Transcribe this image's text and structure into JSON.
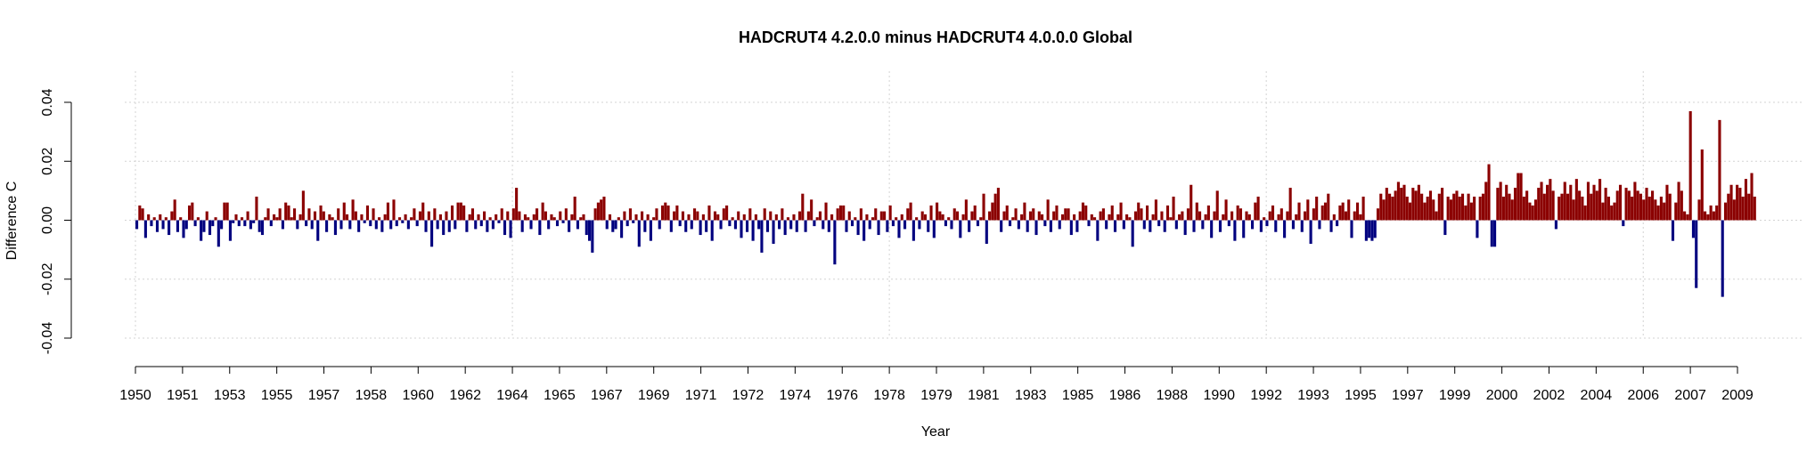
{
  "chart_data": {
    "type": "bar",
    "title": "HADCRUT4 4.2.0.0 minus HADCRUT4 4.0.0.0 Global",
    "xlabel": "Year",
    "ylabel": "Difference C",
    "ylim": [
      -0.04,
      0.04
    ],
    "yticks": [
      -0.04,
      -0.02,
      0.0,
      0.02,
      0.04
    ],
    "ytick_labels": [
      "-0.04",
      "-0.02",
      "0.00",
      "0.02",
      "0.04"
    ],
    "xtick_labels": [
      "1950",
      "1951",
      "1953",
      "1955",
      "1957",
      "1958",
      "1960",
      "1962",
      "1964",
      "1965",
      "1967",
      "1969",
      "1971",
      "1972",
      "1974",
      "1976",
      "1978",
      "1979",
      "1981",
      "1983",
      "1985",
      "1986",
      "1988",
      "1990",
      "1992",
      "1993",
      "1995",
      "1997",
      "1999",
      "2000",
      "2002",
      "2004",
      "2006",
      "2007",
      "2009"
    ],
    "grid": true,
    "x_start": "1950-01",
    "x_end": "2012-12",
    "frequency": "monthly",
    "positive_color": "#8B0000",
    "negative_color": "#00007F",
    "values": [
      -0.003,
      0.005,
      0.004,
      -0.006,
      0.002,
      -0.002,
      0.001,
      -0.004,
      0.002,
      -0.003,
      0.001,
      -0.005,
      0.003,
      0.007,
      -0.004,
      0.001,
      -0.006,
      -0.003,
      0.005,
      0.006,
      -0.002,
      0.001,
      -0.007,
      -0.004,
      0.003,
      -0.005,
      -0.002,
      0.001,
      -0.009,
      -0.003,
      0.006,
      0.006,
      -0.007,
      -0.001,
      0.002,
      -0.002,
      0.001,
      -0.002,
      0.003,
      -0.003,
      -0.001,
      0.008,
      -0.004,
      -0.005,
      0.001,
      0.004,
      -0.002,
      0.002,
      0.001,
      0.004,
      -0.003,
      0.006,
      0.005,
      0.001,
      0.004,
      -0.003,
      0.002,
      0.01,
      -0.002,
      0.004,
      -0.003,
      0.003,
      -0.007,
      0.005,
      0.003,
      -0.004,
      0.002,
      0.001,
      -0.005,
      0.004,
      -0.003,
      0.006,
      0.002,
      -0.003,
      0.007,
      0.003,
      -0.004,
      0.002,
      -0.001,
      0.005,
      -0.002,
      0.004,
      -0.003,
      0.001,
      -0.004,
      0.002,
      0.006,
      -0.003,
      0.007,
      -0.002,
      0.001,
      -0.001,
      0.002,
      -0.003,
      0.001,
      0.004,
      -0.002,
      0.003,
      0.006,
      -0.004,
      0.003,
      -0.009,
      0.004,
      -0.003,
      0.002,
      -0.005,
      0.003,
      -0.004,
      0.005,
      -0.003,
      0.006,
      0.006,
      0.005,
      -0.004,
      0.002,
      0.004,
      -0.003,
      0.002,
      -0.002,
      0.003,
      -0.004,
      0.001,
      -0.003,
      0.002,
      -0.001,
      0.004,
      -0.005,
      0.003,
      -0.006,
      0.004,
      0.011,
      0.003,
      -0.004,
      0.002,
      0.001,
      -0.003,
      0.002,
      0.004,
      -0.005,
      0.006,
      0.003,
      -0.003,
      0.002,
      0.001,
      -0.002,
      0.003,
      -0.001,
      0.004,
      -0.004,
      0.002,
      0.008,
      -0.003,
      0.001,
      0.002,
      -0.005,
      -0.007,
      -0.011,
      0.004,
      0.006,
      0.007,
      0.008,
      -0.003,
      0.002,
      -0.004,
      -0.003,
      0.001,
      -0.006,
      0.003,
      -0.002,
      0.004,
      -0.001,
      0.002,
      -0.009,
      0.003,
      -0.004,
      0.002,
      -0.007,
      0.001,
      0.004,
      -0.003,
      0.005,
      0.006,
      0.005,
      -0.004,
      0.003,
      0.005,
      -0.002,
      0.003,
      -0.004,
      0.002,
      -0.003,
      0.004,
      0.003,
      -0.005,
      0.002,
      -0.004,
      0.005,
      -0.007,
      0.003,
      0.002,
      -0.003,
      0.004,
      0.005,
      -0.002,
      0.001,
      -0.003,
      0.003,
      -0.006,
      0.002,
      -0.004,
      0.004,
      -0.007,
      0.002,
      -0.003,
      -0.011,
      0.004,
      -0.004,
      0.003,
      -0.008,
      0.002,
      -0.003,
      0.004,
      -0.005,
      0.001,
      -0.003,
      0.002,
      -0.004,
      0.003,
      0.009,
      -0.004,
      0.003,
      0.007,
      -0.002,
      0.001,
      0.003,
      -0.003,
      0.006,
      -0.004,
      0.002,
      -0.015,
      0.004,
      0.005,
      0.005,
      -0.004,
      0.003,
      -0.002,
      0.001,
      -0.005,
      0.004,
      -0.007,
      0.002,
      -0.003,
      0.001,
      0.004,
      -0.005,
      0.003,
      0.003,
      -0.004,
      0.005,
      -0.002,
      0.001,
      -0.006,
      0.002,
      -0.003,
      0.004,
      0.006,
      -0.007,
      0.001,
      -0.003,
      0.003,
      0.002,
      -0.004,
      0.005,
      -0.006,
      0.006,
      0.003,
      0.002,
      -0.002,
      0.001,
      -0.003,
      0.004,
      0.003,
      -0.006,
      0.002,
      0.007,
      -0.004,
      0.003,
      0.005,
      -0.002,
      0.001,
      0.009,
      -0.008,
      0.003,
      0.006,
      0.009,
      0.011,
      -0.004,
      0.003,
      0.005,
      -0.002,
      0.001,
      0.004,
      -0.003,
      0.002,
      0.006,
      -0.004,
      0.003,
      0.004,
      -0.005,
      0.003,
      0.002,
      -0.002,
      0.007,
      -0.004,
      0.003,
      0.005,
      -0.003,
      0.002,
      0.004,
      0.004,
      -0.005,
      0.002,
      -0.004,
      0.003,
      0.006,
      0.005,
      -0.002,
      0.002,
      0.001,
      -0.007,
      0.003,
      0.004,
      -0.003,
      0.002,
      0.005,
      -0.004,
      0.002,
      0.006,
      -0.003,
      0.002,
      0.001,
      -0.009,
      0.003,
      0.006,
      0.004,
      -0.003,
      0.005,
      -0.004,
      0.002,
      0.007,
      -0.002,
      0.003,
      -0.004,
      0.005,
      0.001,
      0.008,
      -0.003,
      0.002,
      0.003,
      -0.005,
      0.004,
      0.012,
      -0.004,
      0.006,
      0.003,
      -0.003,
      0.002,
      0.005,
      -0.006,
      0.003,
      0.01,
      -0.004,
      0.002,
      0.007,
      -0.002,
      0.003,
      -0.007,
      0.005,
      0.004,
      -0.006,
      0.003,
      0.002,
      -0.003,
      0.006,
      0.008,
      -0.004,
      0.001,
      -0.002,
      0.003,
      0.005,
      -0.004,
      0.002,
      0.004,
      -0.006,
      0.003,
      0.011,
      -0.003,
      0.002,
      0.006,
      -0.004,
      0.003,
      0.007,
      -0.008,
      0.004,
      0.008,
      -0.003,
      0.005,
      0.006,
      0.009,
      -0.004,
      0.002,
      -0.002,
      0.005,
      0.006,
      0.003,
      0.007,
      -0.006,
      0.003,
      0.006,
      0.002,
      0.008,
      -0.007,
      -0.006,
      -0.007,
      -0.006,
      0.004,
      0.009,
      0.007,
      0.011,
      0.009,
      0.008,
      0.01,
      0.013,
      0.011,
      0.012,
      0.008,
      0.006,
      0.011,
      0.01,
      0.012,
      0.009,
      0.006,
      0.008,
      0.01,
      0.007,
      0.003,
      0.009,
      0.011,
      -0.005,
      0.008,
      0.007,
      0.009,
      0.01,
      0.008,
      0.009,
      0.005,
      0.009,
      0.006,
      0.008,
      -0.006,
      0.008,
      0.009,
      0.013,
      0.019,
      -0.009,
      -0.009,
      0.011,
      0.013,
      0.008,
      0.012,
      0.009,
      0.007,
      0.011,
      0.016,
      0.016,
      0.008,
      0.01,
      0.006,
      0.005,
      0.007,
      0.011,
      0.013,
      0.009,
      0.012,
      0.014,
      0.01,
      -0.003,
      0.008,
      0.009,
      0.013,
      0.009,
      0.012,
      0.007,
      0.014,
      0.01,
      0.008,
      0.005,
      0.013,
      0.009,
      0.012,
      0.01,
      0.014,
      0.006,
      0.011,
      0.008,
      0.005,
      0.006,
      0.01,
      0.012,
      -0.002,
      0.011,
      0.01,
      0.008,
      0.013,
      0.01,
      0.009,
      0.007,
      0.011,
      0.008,
      0.01,
      0.007,
      0.005,
      0.008,
      0.006,
      0.012,
      0.009,
      -0.007,
      0.006,
      0.013,
      0.01,
      0.003,
      0.002,
      0.037,
      -0.006,
      -0.023,
      0.007,
      0.024,
      0.003,
      0.002,
      0.005,
      0.003,
      0.005,
      0.034,
      -0.026,
      0.006,
      0.009,
      0.012,
      0.007,
      0.012,
      0.011,
      0.008,
      0.014,
      0.009,
      0.016,
      0.008
    ]
  }
}
